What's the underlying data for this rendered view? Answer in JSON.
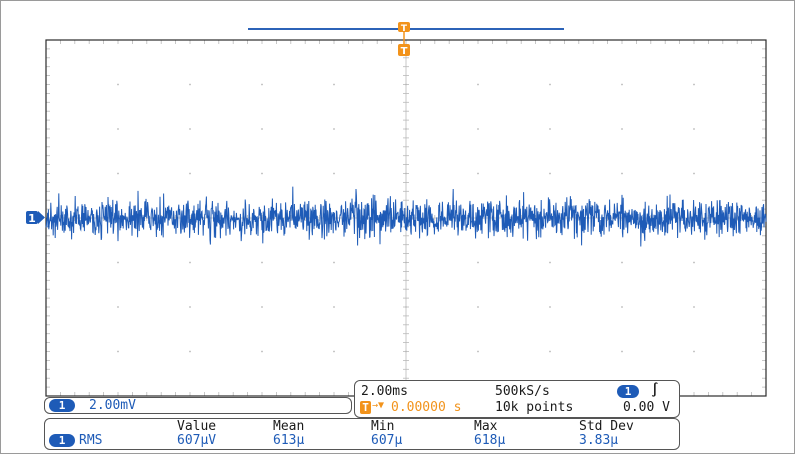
{
  "scope": {
    "channel_number": "1",
    "trigger_letter": "T",
    "vertical": {
      "scale": "2.00mV"
    },
    "horizontal": {
      "timebase": "2.00ms",
      "sample_rate": "500kS/s",
      "trigger_position_prefix": "T",
      "trigger_position_arrow": "→▼",
      "trigger_position_value": "0.00000 s",
      "record_length": "10k points"
    },
    "trigger": {
      "slope_symbol": "∫",
      "level": "0.00 V"
    },
    "measurement": {
      "type": "RMS",
      "headers": [
        "Value",
        "Mean",
        "Min",
        "Max",
        "Std Dev"
      ],
      "values": [
        "607µV",
        "613µ",
        "607µ",
        "618µ",
        "3.83µ"
      ]
    },
    "colors": {
      "trace": "#1e5bb7",
      "trigger": "#f2931b",
      "graticule": "#b9b9b9",
      "frame": "#2b2b2b"
    },
    "icons": {
      "channel_marker": "channel-1-ground-marker-icon",
      "trigger_marker": "trigger-position-marker-icon",
      "slope": "rising-edge-icon"
    }
  }
}
